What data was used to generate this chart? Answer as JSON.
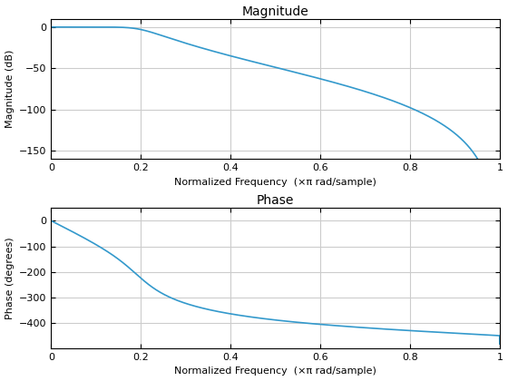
{
  "title_magnitude": "Magnitude",
  "title_phase": "Phase",
  "xlabel": "Normalized Frequency  (×π rad/sample)",
  "ylabel_magnitude": "Magnitude (dB)",
  "ylabel_phase": "Phase (degrees)",
  "xlim": [
    0,
    1
  ],
  "mag_ylim": [
    -160,
    10
  ],
  "phase_ylim": [
    -500,
    50
  ],
  "mag_yticks": [
    0,
    -50,
    -100,
    -150
  ],
  "phase_yticks": [
    0,
    -100,
    -200,
    -300,
    -400
  ],
  "xticks": [
    0,
    0.2,
    0.4,
    0.6,
    0.8,
    1.0
  ],
  "line_color": "#3399CC",
  "line_width": 1.2,
  "grid_color": "#CCCCCC",
  "background_color": "#FFFFFF",
  "filter_order": 5,
  "filter_cutoff": 0.2,
  "title_fontsize": 10,
  "label_fontsize": 8,
  "tick_fontsize": 8
}
